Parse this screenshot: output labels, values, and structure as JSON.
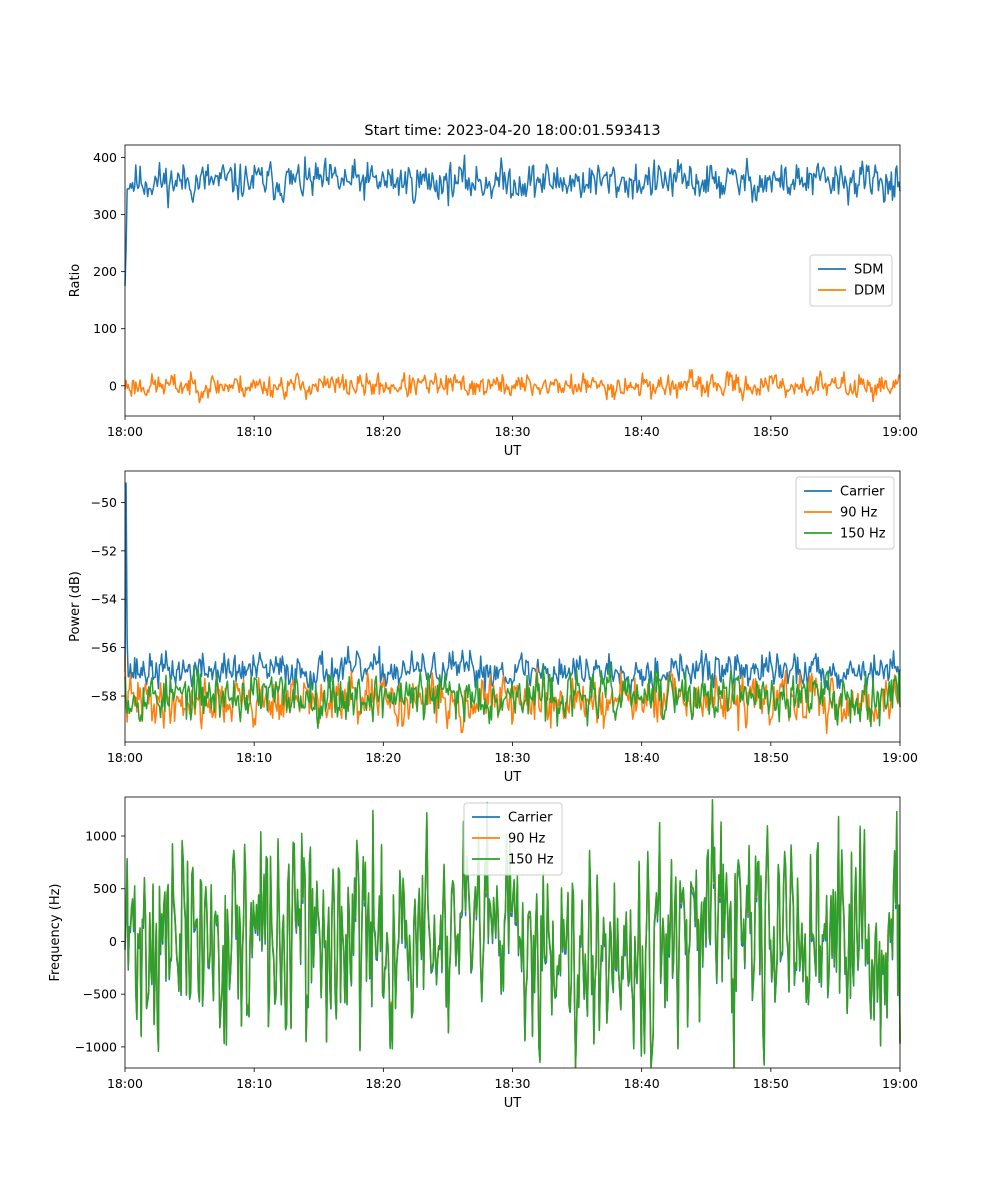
{
  "figure": {
    "title": "Start time: 2023-04-20 18:00:01.593413"
  },
  "chart_data": [
    {
      "type": "line",
      "title": "Start time: 2023-04-20 18:00:01.593413",
      "xlabel": "UT",
      "ylabel": "Ratio",
      "x_range": [
        "18:00",
        "19:00"
      ],
      "x_ticks": [
        "18:00",
        "18:10",
        "18:20",
        "18:30",
        "18:40",
        "18:50",
        "19:00"
      ],
      "y_ticks": [
        0,
        100,
        200,
        300,
        400
      ],
      "ylim": [
        -53,
        422
      ],
      "legend_position": "center-right",
      "grid": false,
      "series": [
        {
          "name": "SDM",
          "color": "#1f77b4",
          "initial": [
            175,
            240,
            345
          ],
          "mean": 358,
          "spread": 13,
          "seed": 11
        },
        {
          "name": "DDM",
          "color": "#ff7f0e",
          "initial": [],
          "mean": 0,
          "spread": 8,
          "seed": 23
        }
      ]
    },
    {
      "type": "line",
      "xlabel": "UT",
      "ylabel": "Power (dB)",
      "x_range": [
        "18:00",
        "19:00"
      ],
      "x_ticks": [
        "18:00",
        "18:10",
        "18:20",
        "18:30",
        "18:40",
        "18:50",
        "19:00"
      ],
      "y_ticks": [
        -58,
        -56,
        -54,
        -52,
        -50
      ],
      "ylim": [
        -59.9,
        -48.7
      ],
      "legend_position": "top-right",
      "grid": false,
      "series": [
        {
          "name": "Carrier",
          "color": "#1f77b4",
          "initial": [
            -57.0,
            -49.2,
            -55.7
          ],
          "mean": -56.95,
          "spread": 0.28,
          "seed": 37
        },
        {
          "name": "90 Hz",
          "color": "#ff7f0e",
          "initial": [
            -56.3
          ],
          "mean": -58.2,
          "spread": 0.38,
          "seed": 41
        },
        {
          "name": "150 Hz",
          "color": "#2ca02c",
          "initial": [
            -57.2
          ],
          "mean": -58.0,
          "spread": 0.38,
          "seed": 53
        }
      ]
    },
    {
      "type": "line",
      "xlabel": "UT",
      "ylabel": "Frequency (Hz)",
      "x_range": [
        "18:00",
        "19:00"
      ],
      "x_ticks": [
        "18:00",
        "18:10",
        "18:20",
        "18:30",
        "18:40",
        "18:50",
        "19:00"
      ],
      "y_ticks": [
        -1000,
        -500,
        0,
        500,
        1000
      ],
      "ylim": [
        -1200,
        1370
      ],
      "legend_position": "top-center",
      "grid": false,
      "series": [
        {
          "name": "Carrier",
          "color": "#1f77b4",
          "mean": 30,
          "spread": 330,
          "seed": 71
        },
        {
          "name": "90 Hz",
          "color": "#ff7f0e",
          "mean": 30,
          "spread": 330,
          "seed": 71
        },
        {
          "name": "150 Hz",
          "color": "#2ca02c",
          "mean": 30,
          "spread": 330,
          "seed": 71
        }
      ]
    }
  ]
}
